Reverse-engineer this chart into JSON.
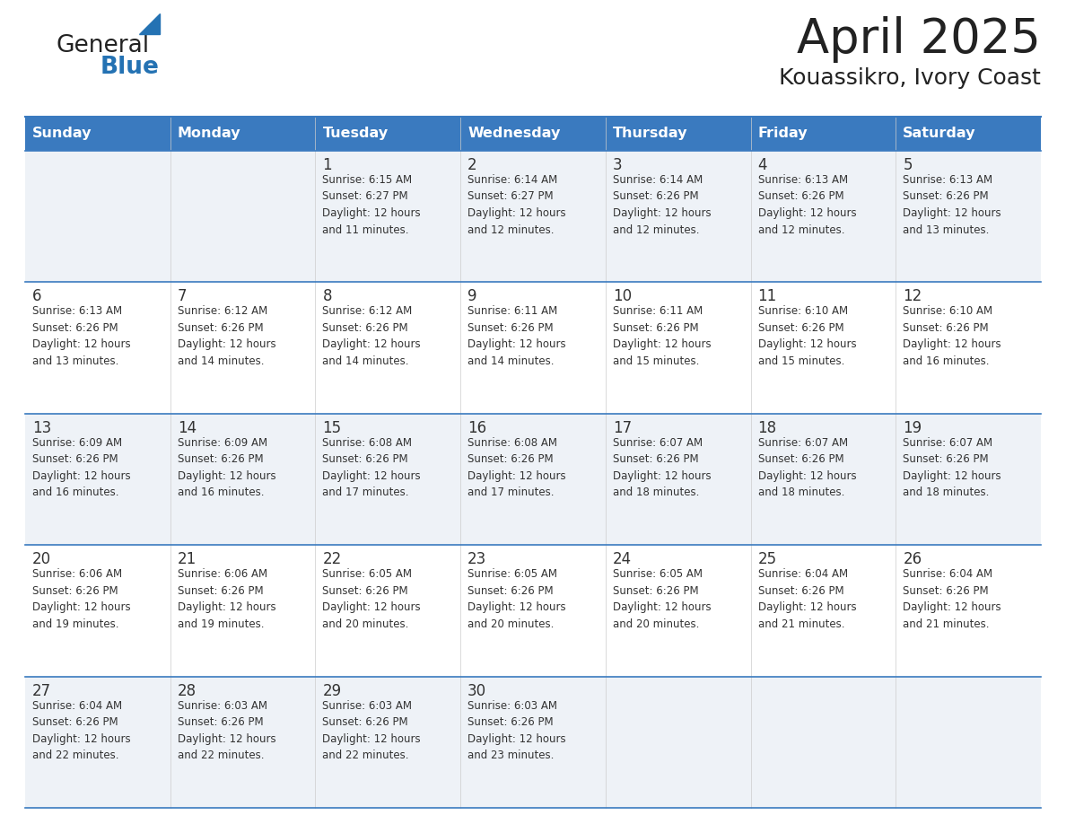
{
  "title": "April 2025",
  "subtitle": "Kouassikro, Ivory Coast",
  "header_color": "#3a7abf",
  "header_text_color": "#ffffff",
  "row_odd_color": "#eef2f7",
  "row_even_color": "#ffffff",
  "border_color": "#3a7abf",
  "thin_border_color": "#aaaaaa",
  "day_headers": [
    "Sunday",
    "Monday",
    "Tuesday",
    "Wednesday",
    "Thursday",
    "Friday",
    "Saturday"
  ],
  "title_color": "#222222",
  "subtitle_color": "#222222",
  "cell_text_color": "#333333",
  "day_number_color": "#333333",
  "logo_general_color": "#222222",
  "logo_blue_color": "#2472b3",
  "calendar_data": [
    [
      {
        "day": null,
        "info": null
      },
      {
        "day": null,
        "info": null
      },
      {
        "day": 1,
        "info": "Sunrise: 6:15 AM\nSunset: 6:27 PM\nDaylight: 12 hours\nand 11 minutes."
      },
      {
        "day": 2,
        "info": "Sunrise: 6:14 AM\nSunset: 6:27 PM\nDaylight: 12 hours\nand 12 minutes."
      },
      {
        "day": 3,
        "info": "Sunrise: 6:14 AM\nSunset: 6:26 PM\nDaylight: 12 hours\nand 12 minutes."
      },
      {
        "day": 4,
        "info": "Sunrise: 6:13 AM\nSunset: 6:26 PM\nDaylight: 12 hours\nand 12 minutes."
      },
      {
        "day": 5,
        "info": "Sunrise: 6:13 AM\nSunset: 6:26 PM\nDaylight: 12 hours\nand 13 minutes."
      }
    ],
    [
      {
        "day": 6,
        "info": "Sunrise: 6:13 AM\nSunset: 6:26 PM\nDaylight: 12 hours\nand 13 minutes."
      },
      {
        "day": 7,
        "info": "Sunrise: 6:12 AM\nSunset: 6:26 PM\nDaylight: 12 hours\nand 14 minutes."
      },
      {
        "day": 8,
        "info": "Sunrise: 6:12 AM\nSunset: 6:26 PM\nDaylight: 12 hours\nand 14 minutes."
      },
      {
        "day": 9,
        "info": "Sunrise: 6:11 AM\nSunset: 6:26 PM\nDaylight: 12 hours\nand 14 minutes."
      },
      {
        "day": 10,
        "info": "Sunrise: 6:11 AM\nSunset: 6:26 PM\nDaylight: 12 hours\nand 15 minutes."
      },
      {
        "day": 11,
        "info": "Sunrise: 6:10 AM\nSunset: 6:26 PM\nDaylight: 12 hours\nand 15 minutes."
      },
      {
        "day": 12,
        "info": "Sunrise: 6:10 AM\nSunset: 6:26 PM\nDaylight: 12 hours\nand 16 minutes."
      }
    ],
    [
      {
        "day": 13,
        "info": "Sunrise: 6:09 AM\nSunset: 6:26 PM\nDaylight: 12 hours\nand 16 minutes."
      },
      {
        "day": 14,
        "info": "Sunrise: 6:09 AM\nSunset: 6:26 PM\nDaylight: 12 hours\nand 16 minutes."
      },
      {
        "day": 15,
        "info": "Sunrise: 6:08 AM\nSunset: 6:26 PM\nDaylight: 12 hours\nand 17 minutes."
      },
      {
        "day": 16,
        "info": "Sunrise: 6:08 AM\nSunset: 6:26 PM\nDaylight: 12 hours\nand 17 minutes."
      },
      {
        "day": 17,
        "info": "Sunrise: 6:07 AM\nSunset: 6:26 PM\nDaylight: 12 hours\nand 18 minutes."
      },
      {
        "day": 18,
        "info": "Sunrise: 6:07 AM\nSunset: 6:26 PM\nDaylight: 12 hours\nand 18 minutes."
      },
      {
        "day": 19,
        "info": "Sunrise: 6:07 AM\nSunset: 6:26 PM\nDaylight: 12 hours\nand 18 minutes."
      }
    ],
    [
      {
        "day": 20,
        "info": "Sunrise: 6:06 AM\nSunset: 6:26 PM\nDaylight: 12 hours\nand 19 minutes."
      },
      {
        "day": 21,
        "info": "Sunrise: 6:06 AM\nSunset: 6:26 PM\nDaylight: 12 hours\nand 19 minutes."
      },
      {
        "day": 22,
        "info": "Sunrise: 6:05 AM\nSunset: 6:26 PM\nDaylight: 12 hours\nand 20 minutes."
      },
      {
        "day": 23,
        "info": "Sunrise: 6:05 AM\nSunset: 6:26 PM\nDaylight: 12 hours\nand 20 minutes."
      },
      {
        "day": 24,
        "info": "Sunrise: 6:05 AM\nSunset: 6:26 PM\nDaylight: 12 hours\nand 20 minutes."
      },
      {
        "day": 25,
        "info": "Sunrise: 6:04 AM\nSunset: 6:26 PM\nDaylight: 12 hours\nand 21 minutes."
      },
      {
        "day": 26,
        "info": "Sunrise: 6:04 AM\nSunset: 6:26 PM\nDaylight: 12 hours\nand 21 minutes."
      }
    ],
    [
      {
        "day": 27,
        "info": "Sunrise: 6:04 AM\nSunset: 6:26 PM\nDaylight: 12 hours\nand 22 minutes."
      },
      {
        "day": 28,
        "info": "Sunrise: 6:03 AM\nSunset: 6:26 PM\nDaylight: 12 hours\nand 22 minutes."
      },
      {
        "day": 29,
        "info": "Sunrise: 6:03 AM\nSunset: 6:26 PM\nDaylight: 12 hours\nand 22 minutes."
      },
      {
        "day": 30,
        "info": "Sunrise: 6:03 AM\nSunset: 6:26 PM\nDaylight: 12 hours\nand 23 minutes."
      },
      {
        "day": null,
        "info": null
      },
      {
        "day": null,
        "info": null
      },
      {
        "day": null,
        "info": null
      }
    ]
  ],
  "fig_width": 11.88,
  "fig_height": 9.18,
  "dpi": 100
}
